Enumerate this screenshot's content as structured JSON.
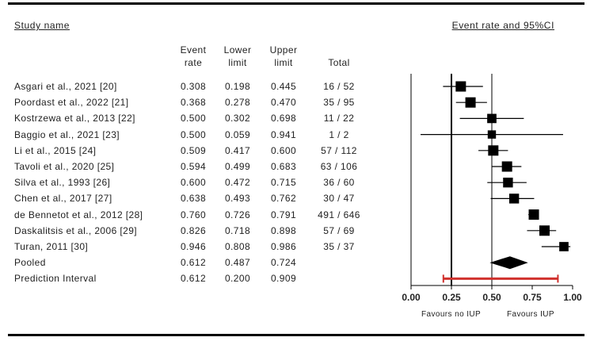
{
  "headers": {
    "study_name": "Study name",
    "plot_title": "Event rate and 95%CI",
    "event_rate": [
      "Event",
      "rate"
    ],
    "lower_limit": [
      "Lower",
      "limit"
    ],
    "upper_limit": [
      "Upper",
      "limit"
    ],
    "total": "Total"
  },
  "footer": {
    "left": "Favours no IUP",
    "right": "Favours IUP"
  },
  "chart_data": {
    "type": "forest",
    "title": "Event rate and 95%CI",
    "xlim": [
      0,
      1
    ],
    "xticks": [
      "0.00",
      "0.25",
      "0.50",
      "0.75",
      "1.00"
    ],
    "reference_lines": [
      0.25,
      0.5
    ],
    "studies": [
      {
        "name": "Asgari et al., 2021 [20]",
        "rate": "0.308",
        "lower": "0.198",
        "upper": "0.445",
        "total": "16 / 52",
        "weight": 1.0
      },
      {
        "name": "Poordast et al., 2022 [21]",
        "rate": "0.368",
        "lower": "0.278",
        "upper": "0.470",
        "total": "35 / 95",
        "weight": 1.0
      },
      {
        "name": "Kostrzewa et al., 2013 [22]",
        "rate": "0.500",
        "lower": "0.302",
        "upper": "0.698",
        "total": "11 / 22",
        "weight": 0.9
      },
      {
        "name": "Baggio et al., 2021 [23]",
        "rate": "0.500",
        "lower": "0.059",
        "upper": "0.941",
        "total": "1 / 2",
        "weight": 0.8
      },
      {
        "name": "Li et al., 2015 [24]",
        "rate": "0.509",
        "lower": "0.417",
        "upper": "0.600",
        "total": "57 / 112",
        "weight": 1.0
      },
      {
        "name": "Tavoli et al., 2020 [25]",
        "rate": "0.594",
        "lower": "0.499",
        "upper": "0.683",
        "total": "63 / 106",
        "weight": 1.0
      },
      {
        "name": "Silva et al., 1993 [26]",
        "rate": "0.600",
        "lower": "0.472",
        "upper": "0.715",
        "total": "36 / 60",
        "weight": 0.95
      },
      {
        "name": "Chen et al., 2017 [27]",
        "rate": "0.638",
        "lower": "0.493",
        "upper": "0.762",
        "total": "30 / 47",
        "weight": 0.95
      },
      {
        "name": "de Bennetot et al., 2012 [28]",
        "rate": "0.760",
        "lower": "0.726",
        "upper": "0.791",
        "total": "491 / 646",
        "weight": 1.0
      },
      {
        "name": "Daskalitsis et al., 2006 [29]",
        "rate": "0.826",
        "lower": "0.718",
        "upper": "0.898",
        "total": "57 / 69",
        "weight": 1.0
      },
      {
        "name": "Turan, 2011 [30]",
        "rate": "0.946",
        "lower": "0.808",
        "upper": "0.986",
        "total": "35 / 37",
        "weight": 0.9
      }
    ],
    "pooled": {
      "name": "Pooled",
      "rate": "0.612",
      "lower": "0.487",
      "upper": "0.724"
    },
    "prediction_interval": {
      "name": "Prediction Interval",
      "rate": "0.612",
      "lower": "0.200",
      "upper": "0.909",
      "color": "#d0312d"
    }
  }
}
